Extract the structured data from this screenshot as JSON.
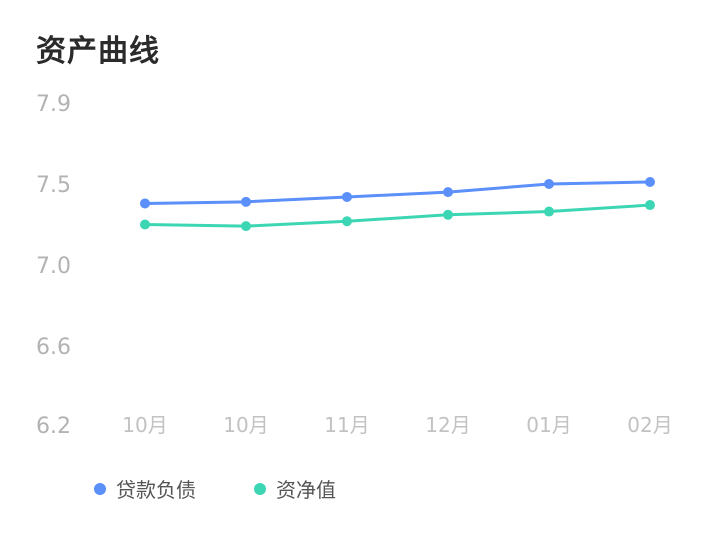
{
  "title": "资产曲线",
  "chart_data": {
    "type": "line",
    "categories": [
      "10月",
      "10月",
      "11月",
      "12月",
      "01月",
      "02月"
    ],
    "y_ticks": [
      "7.9",
      "7.5",
      "7.0",
      "6.6",
      "6.2"
    ],
    "ylim": [
      6.2,
      7.9
    ],
    "grid": false,
    "legend_position": "bottom-left",
    "series": [
      {
        "name": "贷款负债",
        "color": "#5b8ff9",
        "values": [
          7.38,
          7.39,
          7.42,
          7.45,
          7.5,
          7.51
        ]
      },
      {
        "name": "资净值",
        "color": "#3dd6b5",
        "values": [
          7.25,
          7.24,
          7.27,
          7.31,
          7.33,
          7.37
        ]
      }
    ]
  }
}
